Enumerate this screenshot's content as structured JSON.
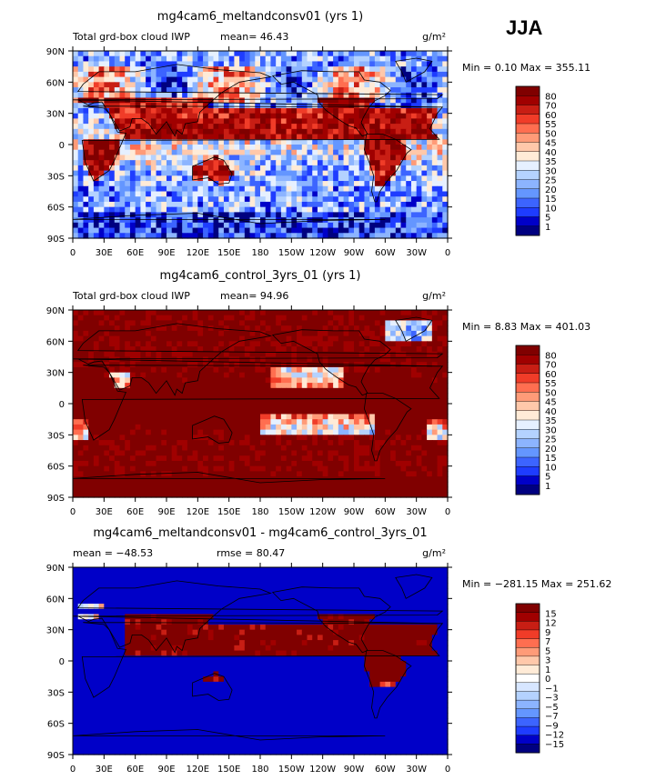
{
  "season": "JJA",
  "colors": {
    "positive_scale": [
      "#000080",
      "#0000c8",
      "#1e3cff",
      "#3c64ff",
      "#6496ff",
      "#8cb4ff",
      "#b4d2ff",
      "#e6f0ff",
      "#ffebd7",
      "#ffc8aa",
      "#ff9b78",
      "#ff6e50",
      "#f03c28",
      "#c81e14",
      "#a00000",
      "#800000"
    ],
    "diff_scale": [
      "#000080",
      "#0000c8",
      "#1e3cff",
      "#3c64ff",
      "#6496ff",
      "#8cb4ff",
      "#b4d2ff",
      "#d7e6ff",
      "#ffffff",
      "#ffebd7",
      "#ffc8aa",
      "#ff9b78",
      "#ff6e50",
      "#f03c28",
      "#c81e14",
      "#a00000",
      "#800000"
    ]
  },
  "chart_data": [
    {
      "type": "heatmap",
      "title": "mg4cam6_meltandconsv01 (yrs 1)",
      "subtitle_left": "Total grd-box cloud IWP",
      "mean_text": "mean=   46.43",
      "units": "g/m²",
      "stats_text": "Min =    0.10 Max = 355.11",
      "mean": 46.43,
      "min": 0.1,
      "max": 355.11,
      "x_ticks": [
        "0",
        "30E",
        "60E",
        "90E",
        "120E",
        "150E",
        "180",
        "150W",
        "120W",
        "90W",
        "60W",
        "30W",
        "0"
      ],
      "y_ticks": [
        "90N",
        "60N",
        "30N",
        "0",
        "30S",
        "60S",
        "90S"
      ],
      "levels": [
        "80",
        "70",
        "60",
        "55",
        "50",
        "45",
        "40",
        "35",
        "30",
        "25",
        "20",
        "15",
        "10",
        "5",
        "1"
      ],
      "scale": "positive"
    },
    {
      "type": "heatmap",
      "title": "mg4cam6_control_3yrs_01 (yrs 1)",
      "subtitle_left": "Total grd-box cloud IWP",
      "mean_text": "mean=   94.96",
      "units": "g/m²",
      "stats_text": "Min =    8.83 Max = 401.03",
      "mean": 94.96,
      "min": 8.83,
      "max": 401.03,
      "x_ticks": [
        "0",
        "30E",
        "60E",
        "90E",
        "120E",
        "150E",
        "180",
        "150W",
        "120W",
        "90W",
        "60W",
        "30W",
        "0"
      ],
      "y_ticks": [
        "90N",
        "60N",
        "30N",
        "0",
        "30S",
        "60S",
        "90S"
      ],
      "levels": [
        "80",
        "70",
        "60",
        "55",
        "50",
        "45",
        "40",
        "35",
        "30",
        "25",
        "20",
        "15",
        "10",
        "5",
        "1"
      ],
      "scale": "positive"
    },
    {
      "type": "heatmap",
      "title": "mg4cam6_meltandconsv01 - mg4cam6_control_3yrs_01",
      "subtitle_left": "mean = −48.53",
      "mean_text": "rmse =   80.47",
      "units": "g/m²",
      "stats_text": "Min = −281.15 Max = 251.62",
      "mean": -48.53,
      "rmse": 80.47,
      "min": -281.15,
      "max": 251.62,
      "x_ticks": [
        "0",
        "30E",
        "60E",
        "90E",
        "120E",
        "150E",
        "180",
        "150W",
        "120W",
        "90W",
        "60W",
        "30W",
        "0"
      ],
      "y_ticks": [
        "90N",
        "60N",
        "30N",
        "0",
        "30S",
        "60S",
        "90S"
      ],
      "levels": [
        "15",
        "12",
        "9",
        "7",
        "5",
        "3",
        "1",
        "0",
        "−1",
        "−3",
        "−5",
        "−7",
        "−9",
        "−12",
        "−15"
      ],
      "scale": "diff"
    }
  ]
}
